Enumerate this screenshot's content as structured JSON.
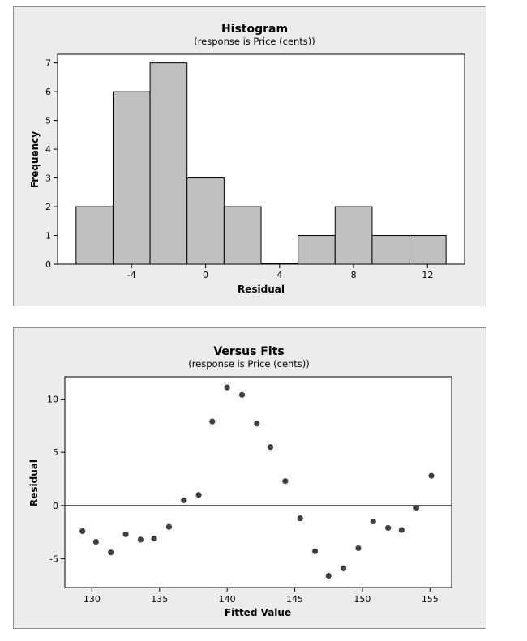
{
  "chart_data": [
    {
      "type": "bar",
      "title": "Histogram",
      "subtitle": "(response is Price (cents))",
      "xlabel": "Residual",
      "ylabel": "Frequency",
      "bin_edges": [
        -7,
        -5,
        -3,
        -1,
        1,
        3,
        5,
        7,
        9,
        11,
        13
      ],
      "values": [
        2,
        6,
        7,
        3,
        2,
        0,
        1,
        2,
        1,
        1
      ],
      "xlim": [
        -8,
        14
      ],
      "ylim": [
        0,
        7.3
      ],
      "xticks": [
        -4,
        0,
        4,
        8,
        12
      ],
      "yticks": [
        0,
        1,
        2,
        3,
        4,
        5,
        6,
        7
      ],
      "colors": {
        "bar_fill": "#c0c0c0",
        "bar_stroke": "#000000",
        "plot_bg": "#ffffff",
        "panel_bg": "#ececec"
      }
    },
    {
      "type": "scatter",
      "title": "Versus Fits",
      "subtitle": "(response is Price (cents))",
      "xlabel": "Fitted Value",
      "ylabel": "Residual",
      "xlim": [
        128,
        156.6
      ],
      "ylim": [
        -7.7,
        12.1
      ],
      "xticks": [
        130,
        135,
        140,
        145,
        150,
        155
      ],
      "yticks": [
        -5,
        0,
        5,
        10
      ],
      "reference_line_y": 0,
      "points": [
        [
          129.3,
          -2.4
        ],
        [
          130.3,
          -3.4
        ],
        [
          131.4,
          -4.4
        ],
        [
          132.5,
          -2.7
        ],
        [
          133.6,
          -3.2
        ],
        [
          134.6,
          -3.1
        ],
        [
          135.7,
          -2.0
        ],
        [
          136.8,
          0.5
        ],
        [
          137.9,
          1.0
        ],
        [
          138.9,
          7.9
        ],
        [
          140.0,
          11.1
        ],
        [
          141.1,
          10.4
        ],
        [
          142.2,
          7.7
        ],
        [
          143.2,
          5.5
        ],
        [
          144.3,
          2.3
        ],
        [
          145.4,
          -1.2
        ],
        [
          146.5,
          -4.3
        ],
        [
          147.5,
          -6.6
        ],
        [
          148.6,
          -5.9
        ],
        [
          149.7,
          -4.0
        ],
        [
          150.8,
          -1.5
        ],
        [
          151.9,
          -2.1
        ],
        [
          152.9,
          -2.3
        ],
        [
          154.0,
          -0.2
        ],
        [
          155.1,
          2.8
        ]
      ],
      "colors": {
        "point": "#404040",
        "plot_bg": "#ffffff",
        "panel_bg": "#ececec"
      }
    }
  ]
}
